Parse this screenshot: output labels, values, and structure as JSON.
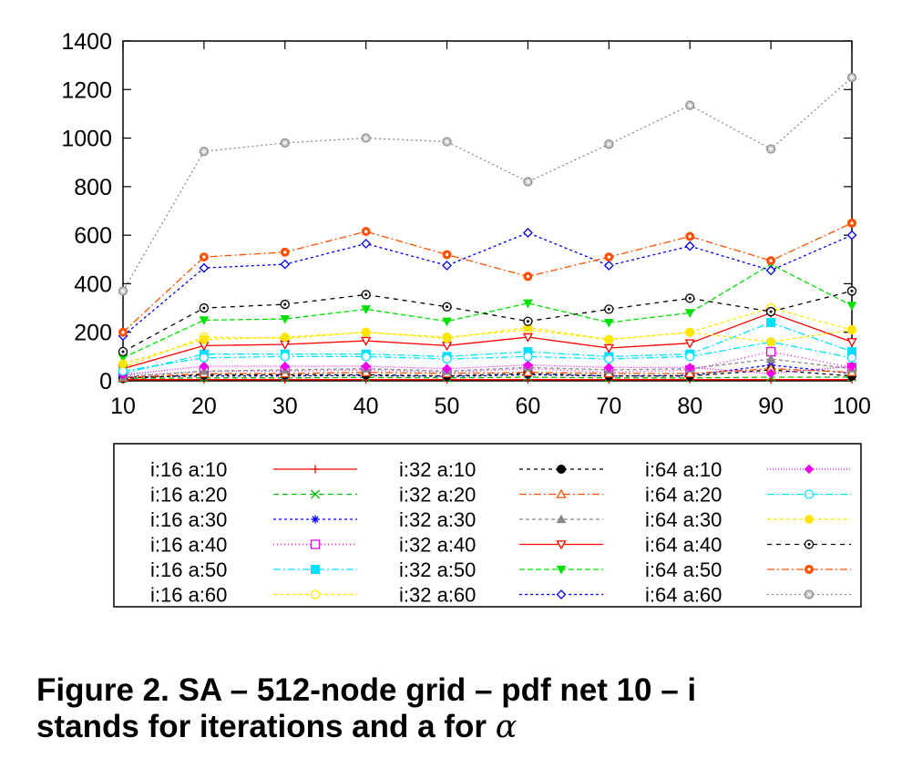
{
  "figure": {
    "caption_line1": "Figure 2. SA – 512-node grid – pdf net 10 – i",
    "caption_line2": "stands for iterations and a for",
    "caption_symbol": "α"
  },
  "chart_data": {
    "type": "line",
    "x": [
      10,
      20,
      30,
      40,
      50,
      60,
      70,
      80,
      90,
      100
    ],
    "xlim": [
      10,
      100
    ],
    "ylim": [
      0,
      1400
    ],
    "xticks": [
      "10",
      "20",
      "30",
      "40",
      "50",
      "60",
      "70",
      "80",
      "90",
      "100"
    ],
    "yticks": [
      "0",
      "200",
      "400",
      "600",
      "800",
      "1000",
      "1200",
      "1400"
    ],
    "legend_position": "bottom",
    "series": [
      {
        "name": "i:16 a:10",
        "color": "#ff0000",
        "dash": "",
        "marker": "plus",
        "values": [
          5,
          5,
          5,
          5,
          5,
          5,
          5,
          5,
          5,
          5
        ]
      },
      {
        "name": "i:16 a:20",
        "color": "#00c000",
        "dash": "6,4",
        "marker": "x",
        "values": [
          10,
          12,
          12,
          14,
          12,
          15,
          12,
          12,
          15,
          15
        ]
      },
      {
        "name": "i:16 a:30",
        "color": "#0000ff",
        "dash": "3,3",
        "marker": "star",
        "values": [
          15,
          20,
          20,
          22,
          18,
          25,
          20,
          22,
          65,
          30
        ]
      },
      {
        "name": "i:16 a:40",
        "color": "#ee00ee",
        "dash": "1,3",
        "marker": "square-open",
        "values": [
          20,
          40,
          40,
          45,
          35,
          50,
          35,
          45,
          120,
          55
        ]
      },
      {
        "name": "i:16 a:50",
        "color": "#00e0ff",
        "dash": "8,3,2,3",
        "marker": "square-filled",
        "values": [
          30,
          110,
          110,
          110,
          100,
          120,
          100,
          110,
          240,
          120
        ]
      },
      {
        "name": "i:16 a:60",
        "color": "#ffe600",
        "dash": "4,3",
        "marker": "circle-open",
        "values": [
          55,
          180,
          175,
          200,
          180,
          210,
          170,
          200,
          300,
          210
        ]
      },
      {
        "name": "i:32 a:10",
        "color": "#000000",
        "dash": "4,4",
        "marker": "circle-filled",
        "values": [
          10,
          25,
          25,
          25,
          20,
          30,
          20,
          20,
          45,
          20
        ]
      },
      {
        "name": "i:32 a:20",
        "color": "#ff5000",
        "dash": "8,3,2,3",
        "marker": "triangle-open",
        "values": [
          12,
          30,
          30,
          35,
          30,
          35,
          30,
          30,
          50,
          35
        ]
      },
      {
        "name": "i:32 a:30",
        "color": "#888888",
        "dash": "4,3",
        "marker": "triangle-filled",
        "values": [
          15,
          40,
          45,
          50,
          40,
          55,
          45,
          50,
          90,
          50
        ]
      },
      {
        "name": "i:32 a:40",
        "color": "#ff0000",
        "dash": "",
        "marker": "triangle-down-open",
        "values": [
          50,
          145,
          150,
          165,
          145,
          180,
          135,
          155,
          280,
          160
        ]
      },
      {
        "name": "i:32 a:50",
        "color": "#00e000",
        "dash": "6,3",
        "marker": "triangle-down-filled",
        "values": [
          95,
          250,
          255,
          295,
          245,
          320,
          240,
          280,
          480,
          310
        ]
      },
      {
        "name": "i:32 a:60",
        "color": "#0000ee",
        "dash": "3,3",
        "marker": "diamond-open",
        "values": [
          185,
          465,
          480,
          565,
          475,
          610,
          475,
          555,
          455,
          600
        ]
      },
      {
        "name": "i:64 a:10",
        "color": "#ee00ee",
        "dash": "1,2",
        "marker": "diamond-filled",
        "values": [
          25,
          60,
          60,
          60,
          50,
          65,
          55,
          55,
          30,
          60
        ]
      },
      {
        "name": "i:64 a:20",
        "color": "#00e0ff",
        "dash": "8,3,2,3",
        "marker": "circle-open",
        "values": [
          40,
          95,
          100,
          100,
          90,
          100,
          90,
          100,
          160,
          95
        ]
      },
      {
        "name": "i:64 a:30",
        "color": "#ffe600",
        "dash": "4,3",
        "marker": "circle-filled",
        "values": [
          70,
          170,
          180,
          200,
          175,
          220,
          170,
          200,
          160,
          210
        ]
      },
      {
        "name": "i:64 a:40",
        "color": "#000000",
        "dash": "5,5",
        "marker": "circle-dot",
        "values": [
          120,
          300,
          315,
          355,
          305,
          245,
          295,
          340,
          285,
          370
        ]
      },
      {
        "name": "i:64 a:50",
        "color": "#ff5000",
        "dash": "8,3,2,3",
        "marker": "circle-dot-filled",
        "values": [
          200,
          510,
          530,
          615,
          520,
          430,
          510,
          595,
          495,
          650
        ]
      },
      {
        "name": "i:64 a:60",
        "color": "#888888",
        "dash": "2,3",
        "marker": "circle-dot-gray",
        "values": [
          370,
          945,
          980,
          1000,
          985,
          820,
          975,
          1135,
          955,
          1250
        ]
      }
    ]
  }
}
